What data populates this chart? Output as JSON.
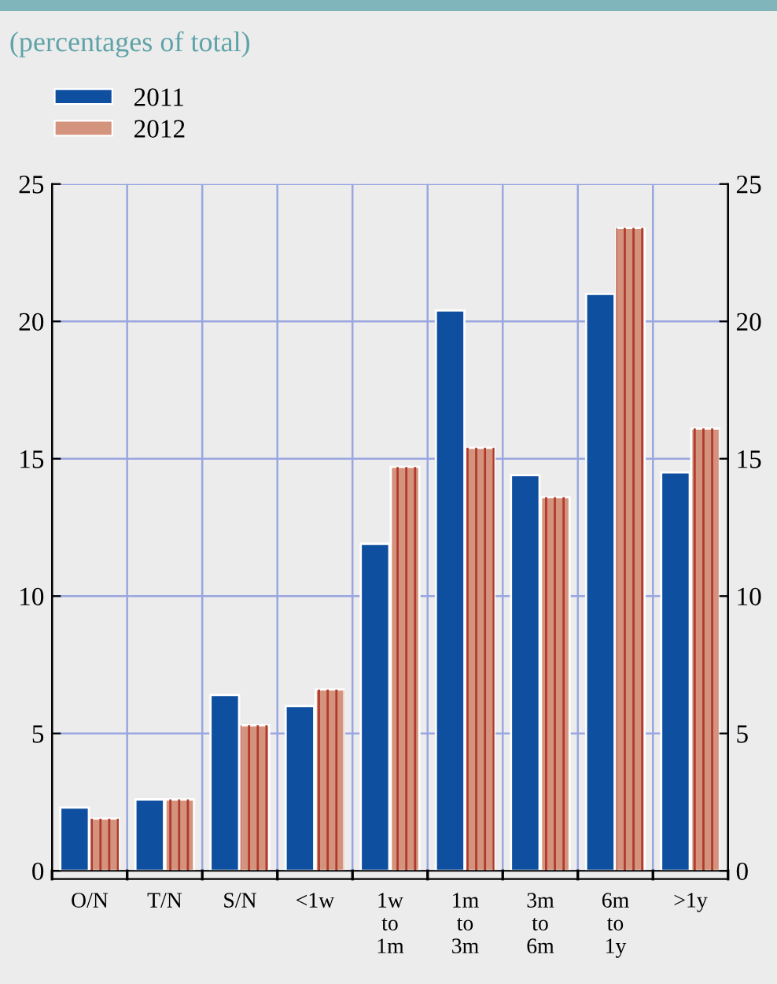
{
  "chart_data": {
    "type": "bar",
    "subtitle": "(percentages of total)",
    "categories": [
      "O/N",
      "T/N",
      "S/N",
      "<1w",
      "1w\nto\n1m",
      "1m\nto\n3m",
      "3m\nto\n6m",
      "6m\nto\n1y",
      ">1y"
    ],
    "series": [
      {
        "name": "2011",
        "color": "#0f4f9f",
        "values": [
          2.3,
          2.6,
          6.4,
          6.0,
          11.9,
          20.4,
          14.4,
          21.0,
          14.5
        ]
      },
      {
        "name": "2012",
        "color": "#d4937c",
        "values": [
          1.9,
          2.6,
          5.3,
          6.6,
          14.7,
          15.4,
          13.6,
          23.4,
          16.1
        ]
      }
    ],
    "ylim": [
      0,
      25
    ],
    "yticks": [
      0,
      5,
      10,
      15,
      20,
      25
    ],
    "y2lim": [
      0,
      25
    ],
    "y2ticks": [
      0,
      5,
      10,
      15,
      20,
      25
    ],
    "grid": true,
    "legend": "top left"
  }
}
